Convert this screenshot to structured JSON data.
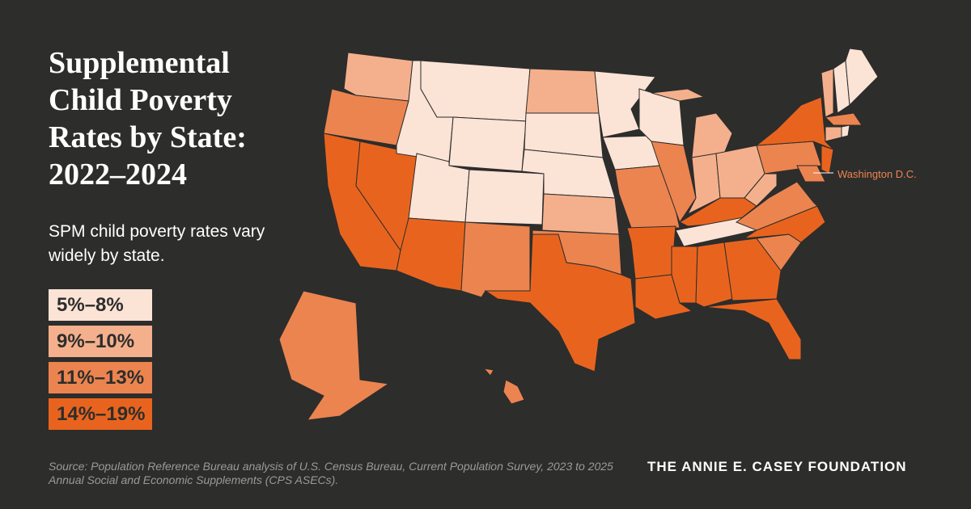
{
  "title": "Supplemental Child Poverty Rates by State: 2022–2024",
  "subtitle": "SPM child poverty rates vary widely by state.",
  "legend": [
    {
      "label": "5%–8%",
      "color": "#fbe3d6"
    },
    {
      "label": "9%–10%",
      "color": "#f4b08c"
    },
    {
      "label": "11%–13%",
      "color": "#ec8450"
    },
    {
      "label": "14%–19%",
      "color": "#e8641e"
    }
  ],
  "annotation": {
    "text": "Washington D.C.",
    "color": "#ec8450"
  },
  "source": "Source: Population Reference Bureau analysis of U.S. Census Bureau, Current Population Survey, 2023 to 2025 Annual Social and Economic Supplements (CPS ASECs).",
  "brand": "THE ANNIE E. CASEY FOUNDATION"
}
